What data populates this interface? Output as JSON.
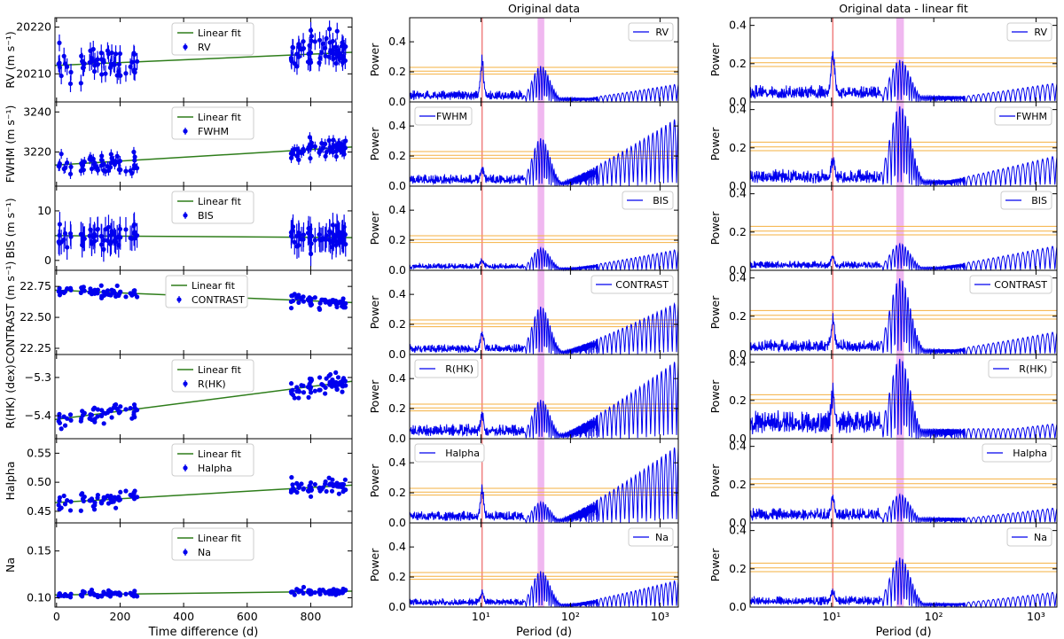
{
  "colors": {
    "series": "#0000ee",
    "fit": "#2e7d1a",
    "red_line": "#f08080",
    "band": "#f0b8f0",
    "orange": "#f5b041"
  },
  "chart_data": [
    {
      "type": "scatter",
      "panel": "time-series",
      "xlabel": "Time difference (d)",
      "xlim": [
        -5,
        930
      ],
      "xticks": [
        0,
        200,
        400,
        600,
        800
      ],
      "rows": [
        {
          "key": "RV",
          "ylabel": "RV (m s⁻¹)",
          "legend": [
            "Linear fit",
            "RV"
          ],
          "ylim": [
            20204,
            20222
          ],
          "yticks": [
            20210,
            20220
          ],
          "fit": [
            20211.8,
            20214.6
          ],
          "base": 20212,
          "spread": 3.5,
          "err": 1.8
        },
        {
          "key": "FWHM",
          "ylabel": "FWHM (m s⁻¹)",
          "legend": [
            "Linear fit",
            "FWHM"
          ],
          "ylim": [
            3203,
            3245
          ],
          "yticks": [
            3220,
            3240
          ],
          "fit": [
            3213.5,
            3222.5
          ],
          "base": 3217,
          "spread": 5,
          "err": 2.5
        },
        {
          "key": "BIS",
          "ylabel": "BIS (m s⁻¹)",
          "legend": [
            "Linear fit",
            "BIS"
          ],
          "ylim": [
            -2,
            15
          ],
          "yticks": [
            0,
            10
          ],
          "fit": [
            5.0,
            4.6
          ],
          "base": 4.8,
          "spread": 2,
          "err": 2.5
        },
        {
          "key": "CONTRAST",
          "ylabel": "CONTRAST (m s⁻¹)",
          "legend": [
            "Linear fit",
            "CONTRAST"
          ],
          "ylim": [
            22.2,
            22.88
          ],
          "yticks": [
            22.25,
            22.5,
            22.75
          ],
          "yticklabels": [
            "22.25",
            "22.50",
            "22.75"
          ],
          "fit": [
            22.72,
            22.62
          ],
          "base": 22.68,
          "spread": 0.04,
          "err": 0.01
        },
        {
          "key": "R(HK)",
          "ylabel": "R(HK) (dex)",
          "legend": [
            "Linear fit",
            "R(HK)"
          ],
          "ylim": [
            -5.46,
            -5.24
          ],
          "yticks": [
            -5.4,
            -5.3
          ],
          "yticklabels": [
            "−5.4",
            "−5.3"
          ],
          "fit": [
            -5.41,
            -5.31
          ],
          "base": -5.38,
          "spread": 0.025,
          "err": 0.003
        },
        {
          "key": "Halpha",
          "ylabel": "Halpha",
          "legend": [
            "Linear fit",
            "Halpha"
          ],
          "ylim": [
            0.43,
            0.575
          ],
          "yticks": [
            0.45,
            0.5,
            0.55
          ],
          "yticklabels": [
            "0.45",
            "0.50",
            "0.55"
          ],
          "fit": [
            0.465,
            0.495
          ],
          "base": 0.475,
          "spread": 0.012,
          "err": 0.002
        },
        {
          "key": "Na",
          "ylabel": "Na",
          "legend": [
            "Linear fit",
            "Na"
          ],
          "ylim": [
            0.09,
            0.18
          ],
          "yticks": [
            0.1,
            0.15
          ],
          "yticklabels": [
            "0.10",
            "0.15"
          ],
          "fit": [
            0.103,
            0.107
          ],
          "base": 0.104,
          "spread": 0.003,
          "err": 0.001
        }
      ]
    },
    {
      "type": "line",
      "panel": "periodogram",
      "title": "Original data",
      "xlabel": "Period (d)",
      "ylabel": "Power",
      "xscale": "log",
      "xlim": [
        1.6,
        1600
      ],
      "xticks": [
        10,
        100,
        1000
      ],
      "xticklabels": [
        "10¹",
        "10²",
        "10³"
      ],
      "ylim": [
        0,
        0.56
      ],
      "yticks": [
        0,
        0.2,
        0.4
      ],
      "yticklabels": [
        "0.0",
        "0.2",
        "0.4"
      ],
      "red_line_period": 10.3,
      "band_period": [
        43,
        51
      ],
      "fap_levels": [
        0.185,
        0.205,
        0.23
      ],
      "series": [
        {
          "name": "RV",
          "peak10": 0.26,
          "peak47": 0.24,
          "long": 0.12,
          "noise": 0.08
        },
        {
          "name": "FWHM",
          "peak10": 0.08,
          "peak47": 0.32,
          "long": 0.46,
          "noise": 0.08
        },
        {
          "name": "BIS",
          "peak10": 0.05,
          "peak47": 0.15,
          "long": 0.14,
          "noise": 0.05
        },
        {
          "name": "CONTRAST",
          "peak10": 0.12,
          "peak47": 0.32,
          "long": 0.35,
          "noise": 0.07
        },
        {
          "name": "R(HK)",
          "peak10": 0.12,
          "peak47": 0.26,
          "long": 0.53,
          "noise": 0.1
        },
        {
          "name": "Halpha",
          "peak10": 0.23,
          "peak47": 0.14,
          "long": 0.52,
          "noise": 0.08
        },
        {
          "name": "Na",
          "peak10": 0.08,
          "peak47": 0.24,
          "long": 0.18,
          "noise": 0.06
        }
      ]
    },
    {
      "type": "line",
      "panel": "periodogram",
      "title": "Original data - linear fit",
      "xlabel": "Period (d)",
      "ylabel": "Power",
      "xscale": "log",
      "xlim": [
        1.6,
        1600
      ],
      "xticks": [
        10,
        100,
        1000
      ],
      "xticklabels": [
        "10¹",
        "10²",
        "10³"
      ],
      "ylim": [
        0,
        0.44
      ],
      "yticks": [
        0,
        0.2,
        0.4
      ],
      "yticklabels": [
        "0.0",
        "0.2",
        "0.4"
      ],
      "red_line_period": 10.3,
      "band_period": [
        43,
        51
      ],
      "fap_levels": [
        0.185,
        0.205,
        0.23
      ],
      "series": [
        {
          "name": "RV",
          "peak10": 0.24,
          "peak47": 0.22,
          "long": 0.1,
          "noise": 0.09
        },
        {
          "name": "FWHM",
          "peak10": 0.1,
          "peak47": 0.42,
          "long": 0.16,
          "noise": 0.09
        },
        {
          "name": "BIS",
          "peak10": 0.05,
          "peak47": 0.14,
          "long": 0.13,
          "noise": 0.05
        },
        {
          "name": "CONTRAST",
          "peak10": 0.15,
          "peak47": 0.4,
          "long": 0.12,
          "noise": 0.08
        },
        {
          "name": "R(HK)",
          "peak10": 0.16,
          "peak47": 0.42,
          "long": 0.08,
          "noise": 0.15
        },
        {
          "name": "Halpha",
          "peak10": 0.1,
          "peak47": 0.15,
          "long": 0.08,
          "noise": 0.08
        },
        {
          "name": "Na",
          "peak10": 0.06,
          "peak47": 0.26,
          "long": 0.08,
          "noise": 0.06
        }
      ]
    }
  ]
}
